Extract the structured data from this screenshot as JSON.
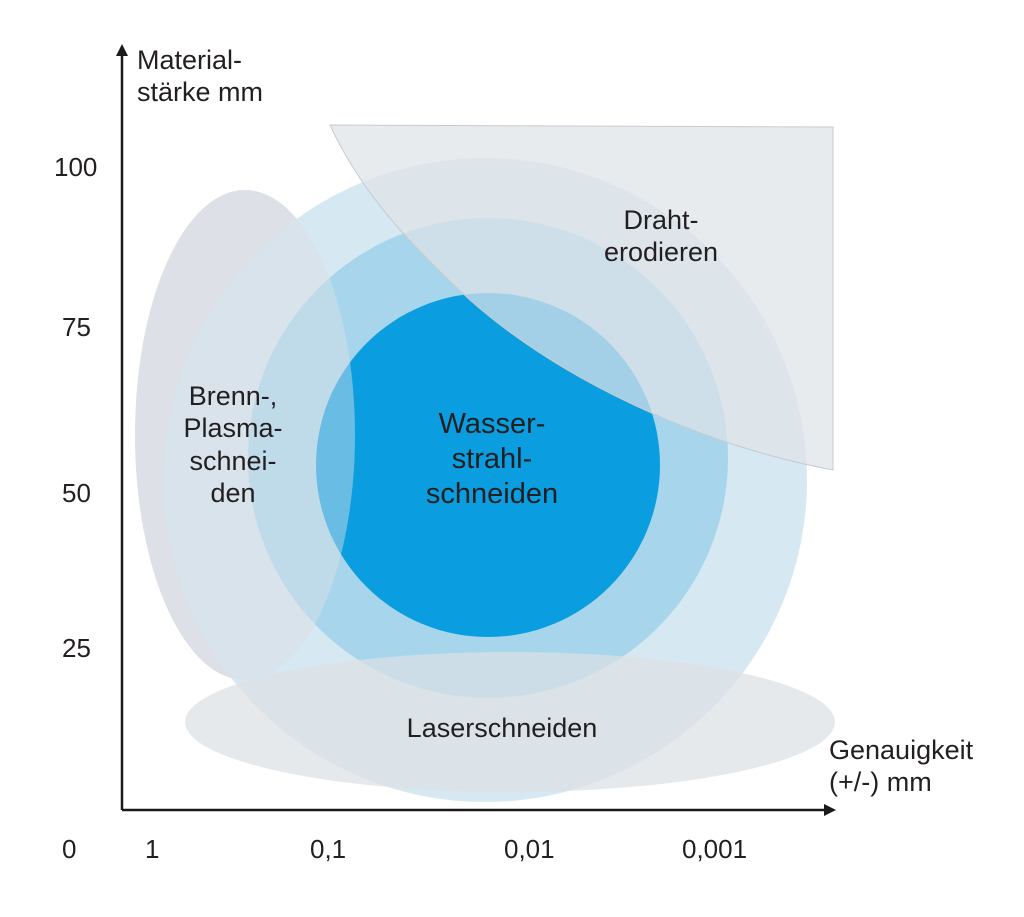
{
  "colors": {
    "plasma_ellipse": "#dde1e6",
    "outer_ring": "#d3e6f1",
    "middle_ring": "#9fd1ea",
    "core": "#0a9ee0",
    "wire_region": "#dfe3e7",
    "laser_ellipse": "#dde0e4",
    "axis": "#1a1a1a",
    "text": "#231f20"
  },
  "y_axis": {
    "title_lines": [
      "Material-",
      "stärke mm"
    ],
    "ticks": [
      "100",
      "75",
      "50",
      "25"
    ]
  },
  "x_axis": {
    "title_lines": [
      "Genauigkeit",
      "(+/-) mm"
    ],
    "origin_label": "0",
    "ticks": [
      "1",
      "0,1",
      "0,01",
      "0,001"
    ]
  },
  "regions": {
    "plasma": {
      "lines": [
        "Brenn-,",
        "Plasma-",
        "schnei-",
        "den"
      ]
    },
    "water": {
      "lines": [
        "Wasser-",
        "strahl-",
        "schneiden"
      ]
    },
    "wire": {
      "lines": [
        "Draht-",
        "erodieren"
      ]
    },
    "laser": {
      "lines": [
        "Laserschneiden"
      ]
    }
  }
}
